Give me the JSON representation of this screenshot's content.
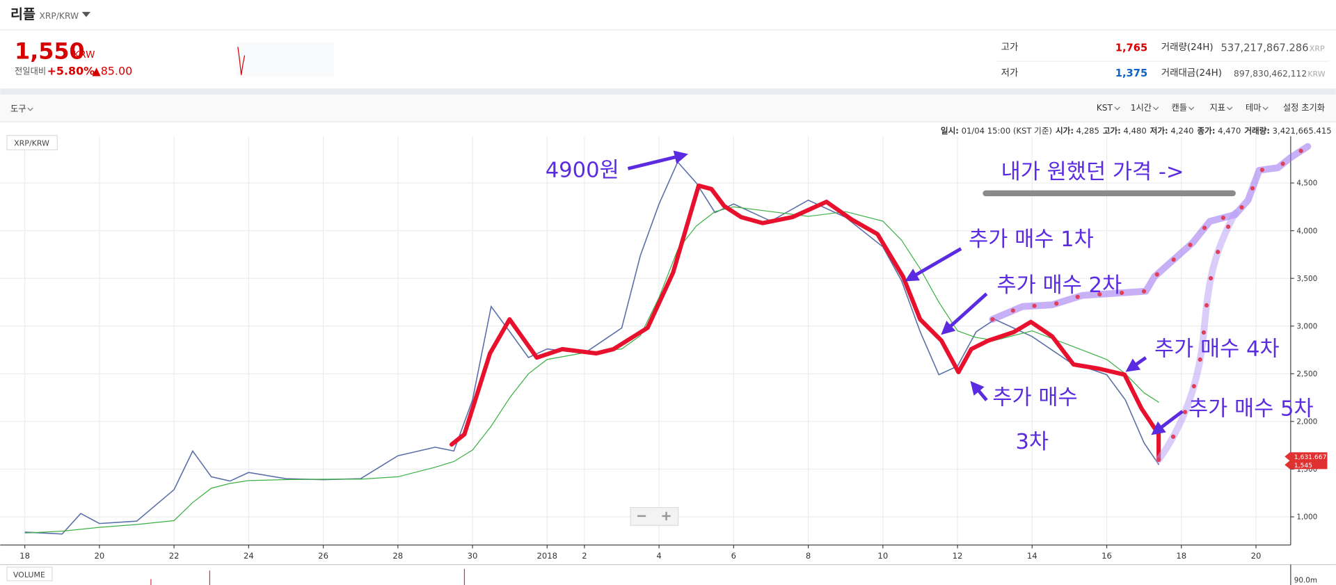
{
  "header": {
    "title": "리플",
    "pair": "XRP/KRW"
  },
  "ticker": {
    "price": "1,550",
    "currency": "KRW",
    "change_label": "전일대비",
    "change_pct": "+5.80%",
    "change_abs": "▲85.00"
  },
  "stats": {
    "high_label": "고가",
    "high": "1,765",
    "low_label": "저가",
    "low": "1,375",
    "volume_label": "거래량(24H)",
    "volume": "537,217,867.286",
    "volume_unit": "XRP",
    "value_label": "거래대금(24H)",
    "value": "897,830,462,112",
    "value_unit": "KRW"
  },
  "toolbar": {
    "tool": "도구",
    "menus": [
      "KST",
      "1시간",
      "캔들",
      "지표",
      "테마"
    ],
    "reset": "설정 초기화"
  },
  "info_line": [
    {
      "label": "일시:",
      "value": "01/04 15:00 (KST 기준)"
    },
    {
      "label": "시가:",
      "value": "4,285"
    },
    {
      "label": "고가:",
      "value": "4,480"
    },
    {
      "label": "저가:",
      "value": "4,240"
    },
    {
      "label": "종가:",
      "value": "4,470"
    },
    {
      "label": "거래량:",
      "value": "3,421,665.415"
    }
  ],
  "chart_data": {
    "type": "line",
    "pair_label": "XRP/KRW",
    "grid": true,
    "x": [
      0,
      1,
      1.5,
      2,
      3,
      4,
      4.5,
      5,
      5.5,
      6,
      7,
      8,
      9,
      10,
      11,
      11.5,
      12,
      12.5,
      13,
      13.5,
      14,
      15,
      16,
      16.5,
      17,
      17.5,
      18,
      18.5,
      19,
      20,
      21,
      22,
      23,
      23.5,
      24,
      24.5,
      25,
      25.5,
      26,
      26.5,
      27,
      28,
      29,
      29.5,
      30,
      30.4
    ],
    "series": [
      {
        "color": "#5b6fa8",
        "values": [
          840,
          820,
          1035,
          930,
          955,
          1285,
          1690,
          1420,
          1375,
          1465,
          1400,
          1390,
          1400,
          1640,
          1730,
          1690,
          2225,
          3205,
          2940,
          2670,
          2760,
          2715,
          2980,
          3740,
          4280,
          4720,
          4500,
          4190,
          4280,
          4100,
          4320,
          4140,
          3830,
          3475,
          2940,
          2490,
          2580,
          2940,
          3070,
          2980,
          2890,
          2625,
          2490,
          2225,
          1775,
          1545
        ]
      },
      {
        "color": "#3cb043",
        "values": [
          830,
          850,
          870,
          890,
          920,
          960,
          1150,
          1300,
          1350,
          1380,
          1390,
          1395,
          1395,
          1420,
          1520,
          1580,
          1700,
          1950,
          2250,
          2500,
          2650,
          2720,
          2760,
          2900,
          3300,
          3800,
          4050,
          4200,
          4250,
          4200,
          4150,
          4200,
          4100,
          3900,
          3600,
          3250,
          2950,
          2880,
          2850,
          2900,
          2950,
          2800,
          2650,
          2500,
          2300,
          2200
        ]
      }
    ],
    "xlim": [
      -0.66,
      33.93
    ],
    "xticks": [
      {
        "value": 0,
        "label": "18"
      },
      {
        "value": 2,
        "label": "20"
      },
      {
        "value": 4,
        "label": "22"
      },
      {
        "value": 6,
        "label": "24"
      },
      {
        "value": 8,
        "label": "26"
      },
      {
        "value": 10,
        "label": "28"
      },
      {
        "value": 12,
        "label": "30"
      },
      {
        "value": 14,
        "label": "2018"
      },
      {
        "value": 15,
        "label": "2"
      },
      {
        "value": 17,
        "label": "4"
      },
      {
        "value": 19,
        "label": "6"
      },
      {
        "value": 21,
        "label": "8"
      },
      {
        "value": 23,
        "label": "10"
      },
      {
        "value": 25,
        "label": "12"
      },
      {
        "value": 27,
        "label": "14"
      },
      {
        "value": 29,
        "label": "16"
      },
      {
        "value": 31,
        "label": "18"
      },
      {
        "value": 33,
        "label": "20"
      }
    ],
    "ylim": [
      705,
      4990
    ],
    "yticks": [
      {
        "value": 1000,
        "label": "1,000"
      },
      {
        "value": 1500,
        "label": "1,500"
      },
      {
        "value": 2000,
        "label": "2,000"
      },
      {
        "value": 2500,
        "label": "2,500"
      },
      {
        "value": 3000,
        "label": "3,000"
      },
      {
        "value": 3500,
        "label": "3,500"
      },
      {
        "value": 4000,
        "label": "4,000"
      },
      {
        "value": 4500,
        "label": "4,500"
      }
    ],
    "price_tags": [
      {
        "value": 1631.667,
        "label": "1,631.667",
        "color": "#e03131"
      },
      {
        "value": 1545,
        "label": "1,545",
        "color": "#e03131"
      }
    ]
  },
  "volume": {
    "label": "VOLUME",
    "axis_label": "90.0m"
  },
  "annotations": {
    "peak": "4900원",
    "wish": "내가 원했던 가격 ->",
    "buy1": "추가 매수 1차",
    "buy2": "추가 매수 2차",
    "buy3a": "추가 매수",
    "buy3b": "3차",
    "buy4": "추가 매수 4차",
    "buy5": "추가 매수 5차"
  }
}
